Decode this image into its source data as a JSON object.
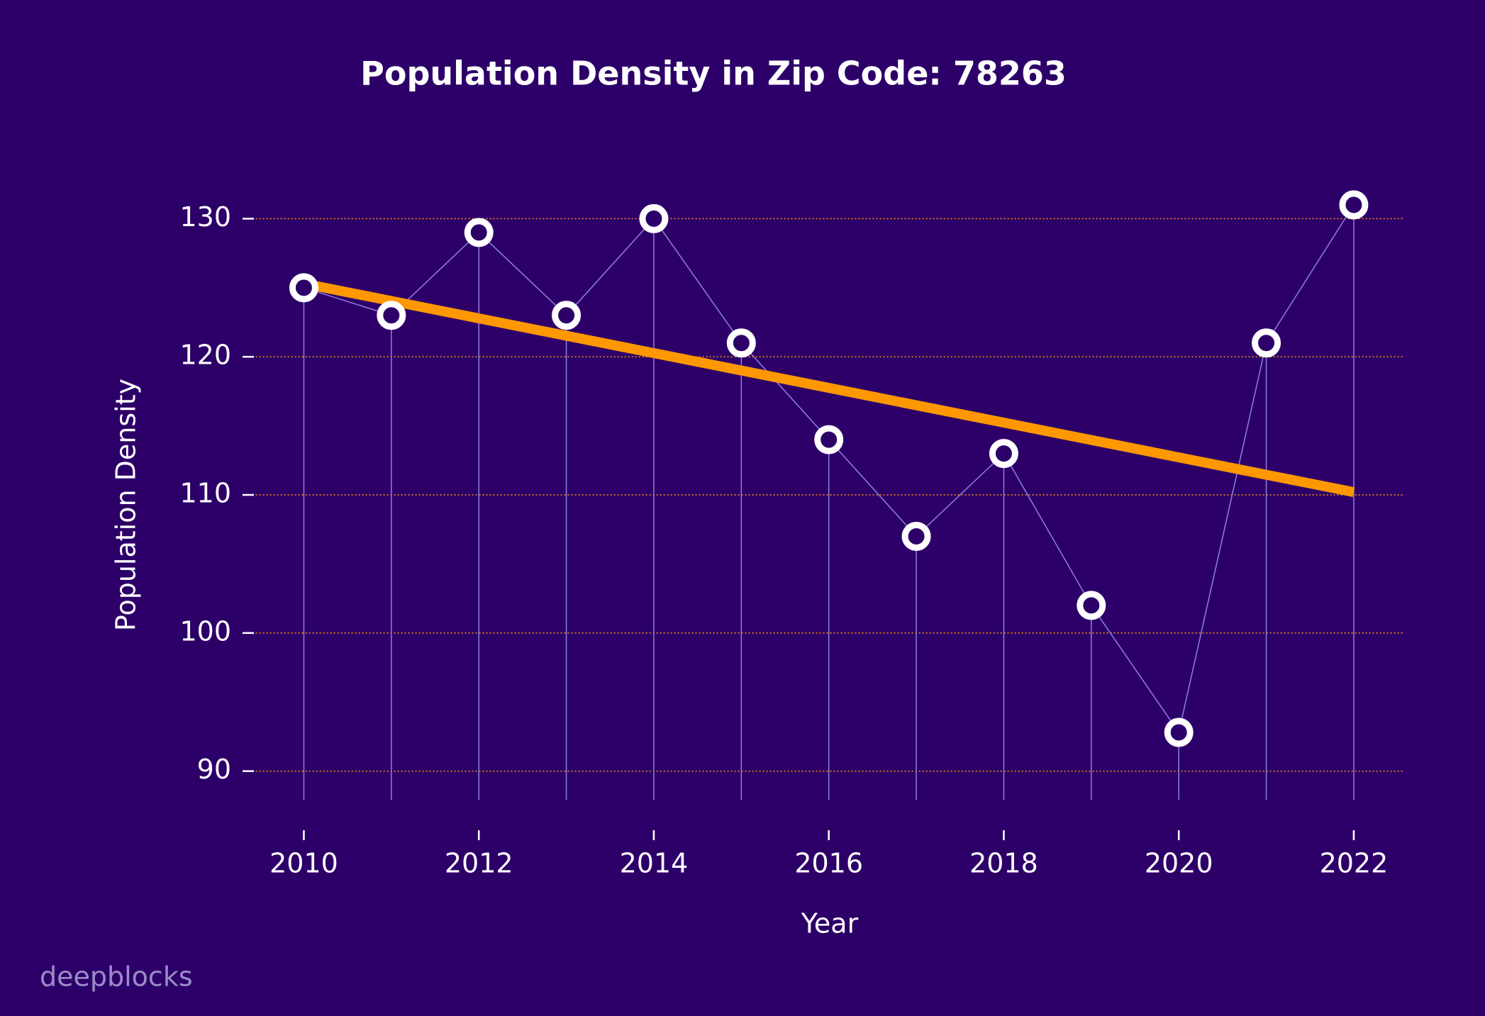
{
  "chart_data": {
    "type": "line",
    "title": "Population Density in Zip Code: 78263",
    "x_label": "Year",
    "y_label": "Population Density",
    "watermark": "deepblocks",
    "x": [
      2010,
      2011,
      2012,
      2013,
      2014,
      2015,
      2016,
      2017,
      2018,
      2019,
      2020,
      2021,
      2022
    ],
    "series": [
      {
        "color": "#ffffff",
        "values": [
          125,
          123,
          129,
          123,
          130,
          121,
          114,
          107,
          113,
          102,
          92.8,
          121,
          131
        ]
      }
    ],
    "trendline": {
      "color": "#ff9800",
      "x": [
        2010,
        2022
      ],
      "values": [
        125.3,
        110.2
      ]
    },
    "xlim": [
      2009.45,
      2022.58
    ],
    "xticks": [
      2010,
      2012,
      2014,
      2016,
      2018,
      2020,
      2022
    ],
    "ylim": [
      87.9,
      133
    ],
    "yticks": [
      90,
      100,
      110,
      120,
      130
    ],
    "grid": true,
    "grid_color": "#ff9800",
    "stem_color": "#8f7fdc",
    "background": "#2d0069"
  }
}
